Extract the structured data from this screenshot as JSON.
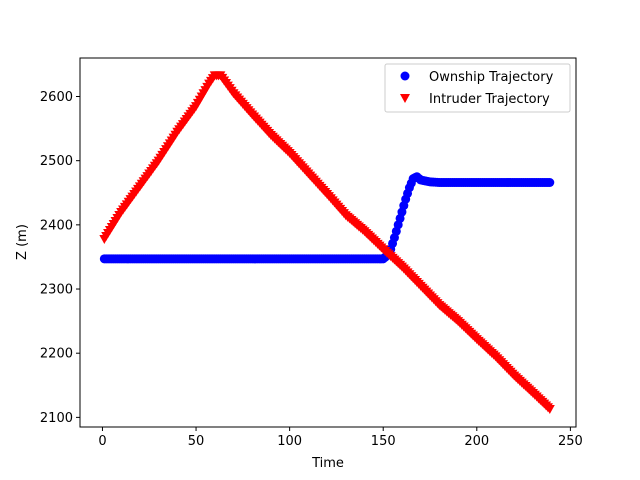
{
  "chart_data": {
    "type": "scatter",
    "title": "",
    "xlabel": "Time",
    "ylabel": "Z (m)",
    "xlim": [
      -12,
      253
    ],
    "ylim": [
      2085,
      2660
    ],
    "xticks": [
      0,
      50,
      100,
      150,
      200,
      250
    ],
    "yticks": [
      2100,
      2200,
      2300,
      2400,
      2500,
      2600
    ],
    "grid": false,
    "legend_position": "top-right",
    "series": [
      {
        "name": "Ownship Trajectory",
        "marker": "circle",
        "color": "#0000ff",
        "points": [
          [
            1,
            2347
          ],
          [
            20,
            2347
          ],
          [
            40,
            2347
          ],
          [
            60,
            2347
          ],
          [
            80,
            2347
          ],
          [
            100,
            2347
          ],
          [
            120,
            2347
          ],
          [
            140,
            2347
          ],
          [
            150,
            2347
          ],
          [
            152,
            2352
          ],
          [
            154,
            2362
          ],
          [
            156,
            2380
          ],
          [
            158,
            2400
          ],
          [
            160,
            2420
          ],
          [
            162,
            2440
          ],
          [
            164,
            2458
          ],
          [
            166,
            2472
          ],
          [
            168,
            2475
          ],
          [
            170,
            2470
          ],
          [
            175,
            2467
          ],
          [
            180,
            2466
          ],
          [
            200,
            2466
          ],
          [
            220,
            2466
          ],
          [
            239,
            2466
          ]
        ]
      },
      {
        "name": "Intruder Trajectory",
        "marker": "triangle-down",
        "color": "#ff0000",
        "points": [
          [
            1,
            2378
          ],
          [
            10,
            2420
          ],
          [
            20,
            2460
          ],
          [
            30,
            2500
          ],
          [
            40,
            2545
          ],
          [
            50,
            2585
          ],
          [
            57,
            2620
          ],
          [
            60,
            2633
          ],
          [
            63,
            2633
          ],
          [
            70,
            2605
          ],
          [
            80,
            2572
          ],
          [
            90,
            2540
          ],
          [
            100,
            2512
          ],
          [
            110,
            2480
          ],
          [
            120,
            2448
          ],
          [
            130,
            2415
          ],
          [
            140,
            2390
          ],
          [
            150,
            2362
          ],
          [
            160,
            2335
          ],
          [
            170,
            2305
          ],
          [
            180,
            2275
          ],
          [
            190,
            2250
          ],
          [
            200,
            2222
          ],
          [
            210,
            2195
          ],
          [
            220,
            2165
          ],
          [
            230,
            2138
          ],
          [
            239,
            2113
          ]
        ]
      }
    ]
  }
}
